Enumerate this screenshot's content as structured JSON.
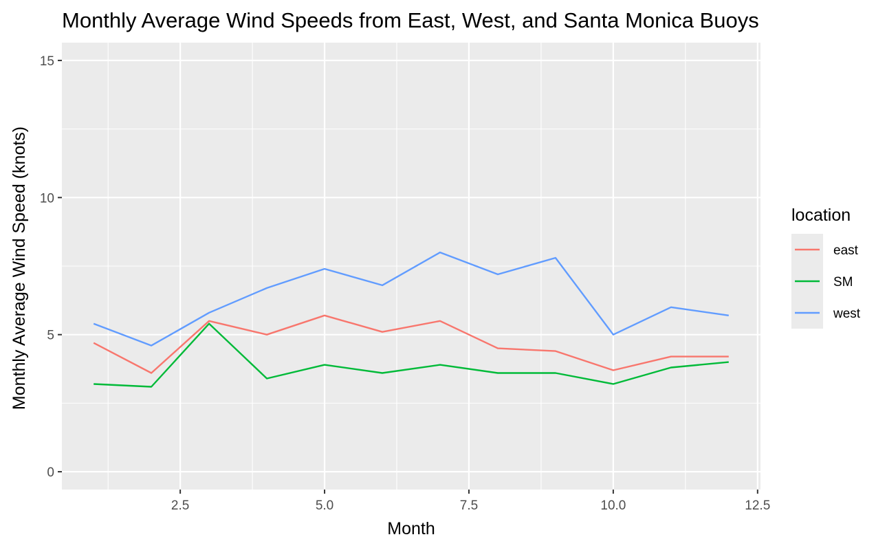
{
  "chart_data": {
    "type": "line",
    "title": "Monthly Average Wind Speeds from East, West, and Santa Monica Buoys",
    "xlabel": "Month",
    "ylabel": "Monthly Average Wind Speed (knots)",
    "xlim": [
      0.45,
      12.55
    ],
    "ylim": [
      -0.65,
      15.65
    ],
    "x_ticks": [
      2.5,
      5.0,
      7.5,
      10.0,
      12.5
    ],
    "x_tick_labels": [
      "2.5",
      "5.0",
      "7.5",
      "10.0",
      "12.5"
    ],
    "x_minor_ticks": [
      1.25,
      3.75,
      6.25,
      8.75,
      11.25
    ],
    "y_ticks": [
      0,
      5,
      10,
      15
    ],
    "y_tick_labels": [
      "0",
      "5",
      "10",
      "15"
    ],
    "y_minor_ticks": [
      2.5,
      7.5,
      12.5
    ],
    "grid": true,
    "legend_title": "location",
    "legend_position": "right",
    "x": [
      1,
      2,
      3,
      4,
      5,
      6,
      7,
      8,
      9,
      10,
      11,
      12
    ],
    "series": [
      {
        "name": "east",
        "color": "#F8766D",
        "values": [
          4.7,
          3.6,
          5.5,
          5.0,
          5.7,
          5.1,
          5.5,
          4.5,
          4.4,
          3.7,
          4.2,
          4.2
        ]
      },
      {
        "name": "SM",
        "color": "#00BA38",
        "values": [
          3.2,
          3.1,
          5.4,
          3.4,
          3.9,
          3.6,
          3.9,
          3.6,
          3.6,
          3.2,
          3.8,
          4.0
        ]
      },
      {
        "name": "west",
        "color": "#619CFF",
        "values": [
          5.4,
          4.6,
          5.8,
          6.7,
          7.4,
          6.8,
          8.0,
          7.2,
          7.8,
          5.0,
          6.0,
          5.7
        ]
      }
    ]
  }
}
